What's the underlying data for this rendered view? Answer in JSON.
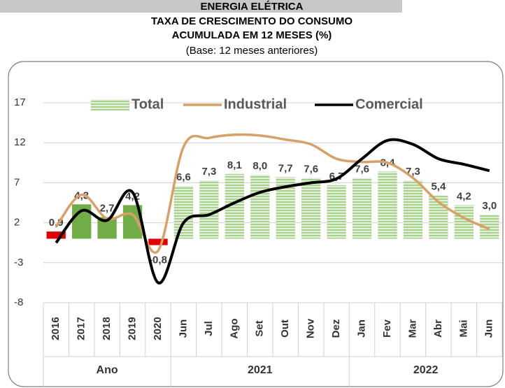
{
  "chart_data": {
    "type": "bar_line",
    "header": "ENERGIA ELÉTRICA",
    "title": [
      "TAXA DE CRESCIMENTO DO CONSUMO",
      "ACUMULADA EM 12 MESES (%)"
    ],
    "subtitle": "(Base: 12 meses anteriores)",
    "categories": [
      "2016",
      "2017",
      "2018",
      "2019",
      "2020",
      "Jun",
      "Jul",
      "Ago",
      "Set",
      "Out",
      "Nov",
      "Dez",
      "Jan",
      "Fev",
      "Mar",
      "Abr",
      "Mai",
      "Jun"
    ],
    "groups": [
      {
        "name": "Ano",
        "count": 5
      },
      {
        "name": "2021",
        "count": 7
      },
      {
        "name": "2022",
        "count": 6
      }
    ],
    "series": [
      {
        "name": "Total",
        "type": "bar",
        "color": "#a9d18e",
        "bar_colors": [
          "#e00000",
          "#70ad47",
          "#70ad47",
          "#70ad47",
          "#e00000",
          "#a9d18e",
          "#a9d18e",
          "#a9d18e",
          "#a9d18e",
          "#a9d18e",
          "#a9d18e",
          "#a9d18e",
          "#a9d18e",
          "#a9d18e",
          "#a9d18e",
          "#a9d18e",
          "#a9d18e",
          "#a9d18e"
        ],
        "bar_styles": [
          "solid",
          "solid",
          "solid",
          "solid",
          "solid",
          "striped",
          "striped",
          "striped",
          "striped",
          "striped",
          "striped",
          "striped",
          "striped",
          "striped",
          "striped",
          "striped",
          "striped",
          "striped"
        ],
        "values": [
          0.9,
          4.3,
          2.7,
          4.2,
          -0.8,
          6.6,
          7.3,
          8.1,
          8.0,
          7.7,
          7.6,
          6.7,
          7.6,
          8.4,
          7.3,
          5.4,
          4.2,
          3.0
        ],
        "value_labels": [
          "0,9",
          "4,3",
          "2,7",
          "4,2",
          "-0,8",
          "6,6",
          "7,3",
          "8,1",
          "8,0",
          "7,7",
          "7,6",
          "6,7",
          "7,6",
          "8,4",
          "7,3",
          "5,4",
          "4,2",
          "3,0"
        ]
      },
      {
        "name": "Industrial",
        "type": "line",
        "color": "#d9a066",
        "values": [
          1.5,
          5.5,
          2.5,
          3.0,
          -1.5,
          11.5,
          12.6,
          13.0,
          12.9,
          12.4,
          11.8,
          10.0,
          9.6,
          9.5,
          7.6,
          4.6,
          2.6,
          1.2
        ]
      },
      {
        "name": "Comercial",
        "type": "line",
        "color": "#000000",
        "values": [
          -0.5,
          3.5,
          2.3,
          5.8,
          -5.5,
          2.0,
          3.0,
          4.5,
          5.8,
          6.5,
          7.0,
          7.5,
          10.0,
          12.3,
          11.8,
          10.0,
          9.3,
          8.5
        ]
      }
    ],
    "ylim": [
      -8,
      17
    ],
    "yticks": [
      -8,
      -3,
      2,
      7,
      12,
      17
    ],
    "grid": true,
    "legend": "top"
  }
}
